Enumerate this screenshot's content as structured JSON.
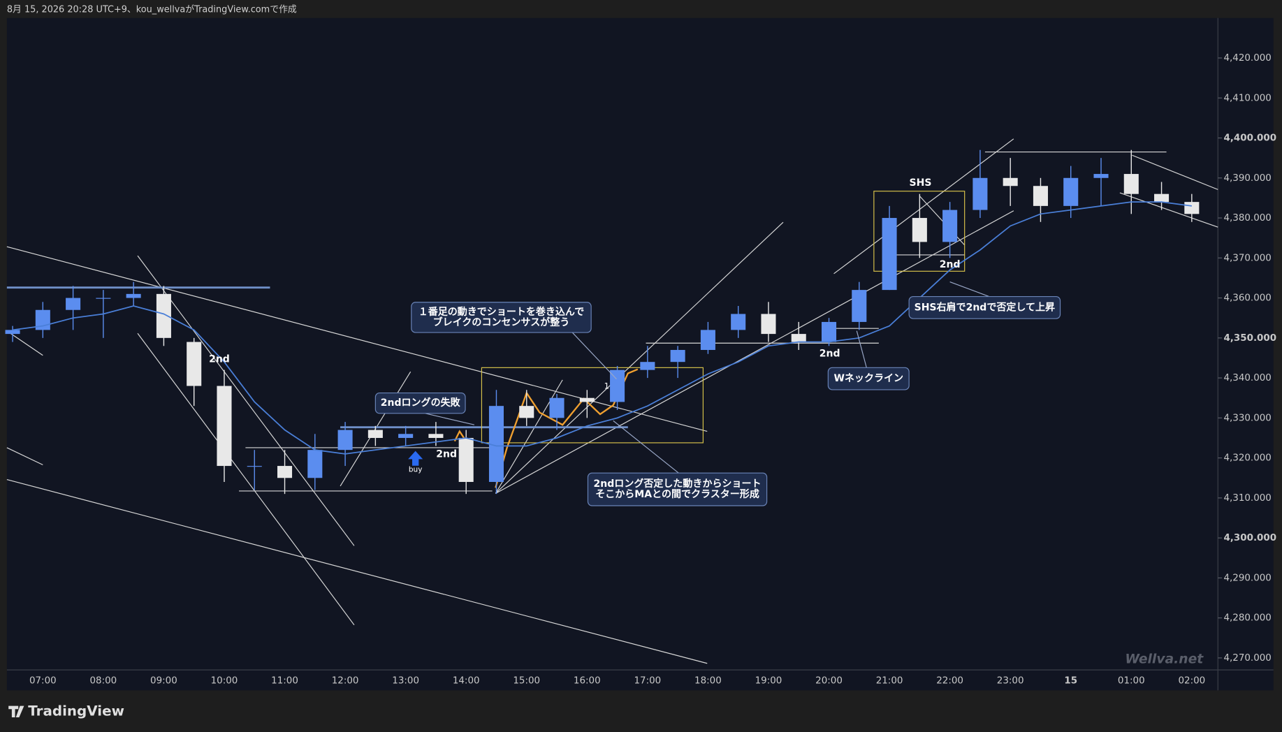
{
  "header": {
    "title": "8月 15, 2026 20:28 UTC+9、kou_wellvaがTradingView.comで作成"
  },
  "chart_data": {
    "type": "candlestick",
    "categories": [
      null,
      "07:00",
      null,
      "08:00",
      null,
      "09:00",
      null,
      "10:00",
      null,
      "11:00",
      null,
      "12:00",
      null,
      "13:00",
      null,
      "14:00",
      null,
      "15:00",
      null,
      "16:00",
      null,
      "17:00",
      null,
      "18:00",
      null,
      "19:00",
      null,
      "20:00",
      null,
      "21:00",
      null,
      "22:00",
      null,
      "23:00",
      null,
      "15",
      null,
      "01:00",
      null,
      "02:00"
    ],
    "open": [
      4351,
      4352,
      4357,
      4360,
      4360,
      4361,
      4349,
      4338,
      4318,
      4318,
      4315,
      4322,
      4327,
      4325,
      4326,
      4325,
      4314,
      4333,
      4330,
      4335,
      4334,
      4342,
      4344,
      4347,
      4352,
      4356,
      4351,
      4349,
      4354,
      4362,
      4380,
      4374,
      4382,
      4390,
      4388,
      4383,
      4390,
      4391,
      4386,
      4384
    ],
    "high": [
      4353,
      4359,
      4363,
      4362,
      4364,
      4363,
      4350,
      4342,
      4322,
      4322,
      4326,
      4329,
      4328,
      4328,
      4329,
      4327,
      4337,
      4337,
      4336,
      4337,
      4343,
      4348,
      4348,
      4354,
      4358,
      4359,
      4354,
      4355,
      4364,
      4383,
      4386,
      4384,
      4397,
      4395,
      4390,
      4393,
      4395,
      4397,
      4389,
      4386
    ],
    "low": [
      4349,
      4350,
      4352,
      4350,
      4358,
      4348,
      4333,
      4314,
      4312,
      4311,
      4312,
      4318,
      4323,
      4323,
      4323,
      4311,
      4311,
      4328,
      4327,
      4330,
      4332,
      4340,
      4340,
      4346,
      4350,
      4349,
      4347,
      4348,
      4352,
      4362,
      4370,
      4370,
      4380,
      4383,
      4379,
      4380,
      4383,
      4381,
      4382,
      4379
    ],
    "close": [
      4352,
      4357,
      4360,
      4360,
      4361,
      4350,
      4338,
      4318,
      4318,
      4315,
      4322,
      4327,
      4325,
      4326,
      4325,
      4314,
      4333,
      4330,
      4335,
      4334,
      4342,
      4344,
      4347,
      4352,
      4356,
      4351,
      4349,
      4354,
      4362,
      4380,
      4374,
      4382,
      4390,
      4388,
      4383,
      4390,
      4391,
      4386,
      4384,
      4381
    ],
    "ma": [
      4352,
      4353,
      4355,
      4356,
      4358,
      4356,
      4352,
      4344,
      4334,
      4327,
      4322,
      4321,
      4322,
      4323,
      4324,
      4325,
      4323,
      4323,
      4325,
      4328,
      4330,
      4333,
      4337,
      4341,
      4344,
      4348,
      4349,
      4349,
      4350,
      4353,
      4360,
      4367,
      4372,
      4378,
      4381,
      4382,
      4383,
      4384,
      4384,
      4383
    ],
    "up_color": "#5b8def",
    "down_color": "#e8e8e8",
    "ma_color": "#4a7fd8",
    "ylim": [
      4267,
      4430
    ],
    "yticks": [
      {
        "value": 4270,
        "label": "4,270.000"
      },
      {
        "value": 4280,
        "label": "4,280.000"
      },
      {
        "value": 4290,
        "label": "4,290.000"
      },
      {
        "value": 4300,
        "label": "4,300.000"
      },
      {
        "value": 4310,
        "label": "4,310.000"
      },
      {
        "value": 4320,
        "label": "4,320.000"
      },
      {
        "value": 4330,
        "label": "4,330.000"
      },
      {
        "value": 4340,
        "label": "4,340.000"
      },
      {
        "value": 4350,
        "label": "4,350.000"
      },
      {
        "value": 4360,
        "label": "4,360.000"
      },
      {
        "value": 4370,
        "label": "4,370.000"
      },
      {
        "value": 4380,
        "label": "4,380.000"
      },
      {
        "value": 4390,
        "label": "4,390.000"
      },
      {
        "value": 4400,
        "label": "4,400.000"
      },
      {
        "value": 4410,
        "label": "4,410.000"
      },
      {
        "value": 4420,
        "label": "4,420.000"
      }
    ],
    "callouts": [
      [
        "１番足の動きでショートを巻き込んで",
        "ブレイクのコンセンサスが整う"
      ],
      [
        "2ndロングの失敗"
      ],
      [
        "2ndロング否定した動きからショート",
        "そこからMAとの間でクラスター形成"
      ],
      [
        "Wネックライン"
      ],
      [
        "SHS右肩で2ndで否定して上昇"
      ]
    ],
    "labels": [
      "2nd",
      "2nd",
      "2nd",
      "2nd",
      "SHS",
      "1",
      "buy"
    ],
    "watermark": "Wellva.net"
  },
  "footer": {
    "brand": "TradingView"
  }
}
